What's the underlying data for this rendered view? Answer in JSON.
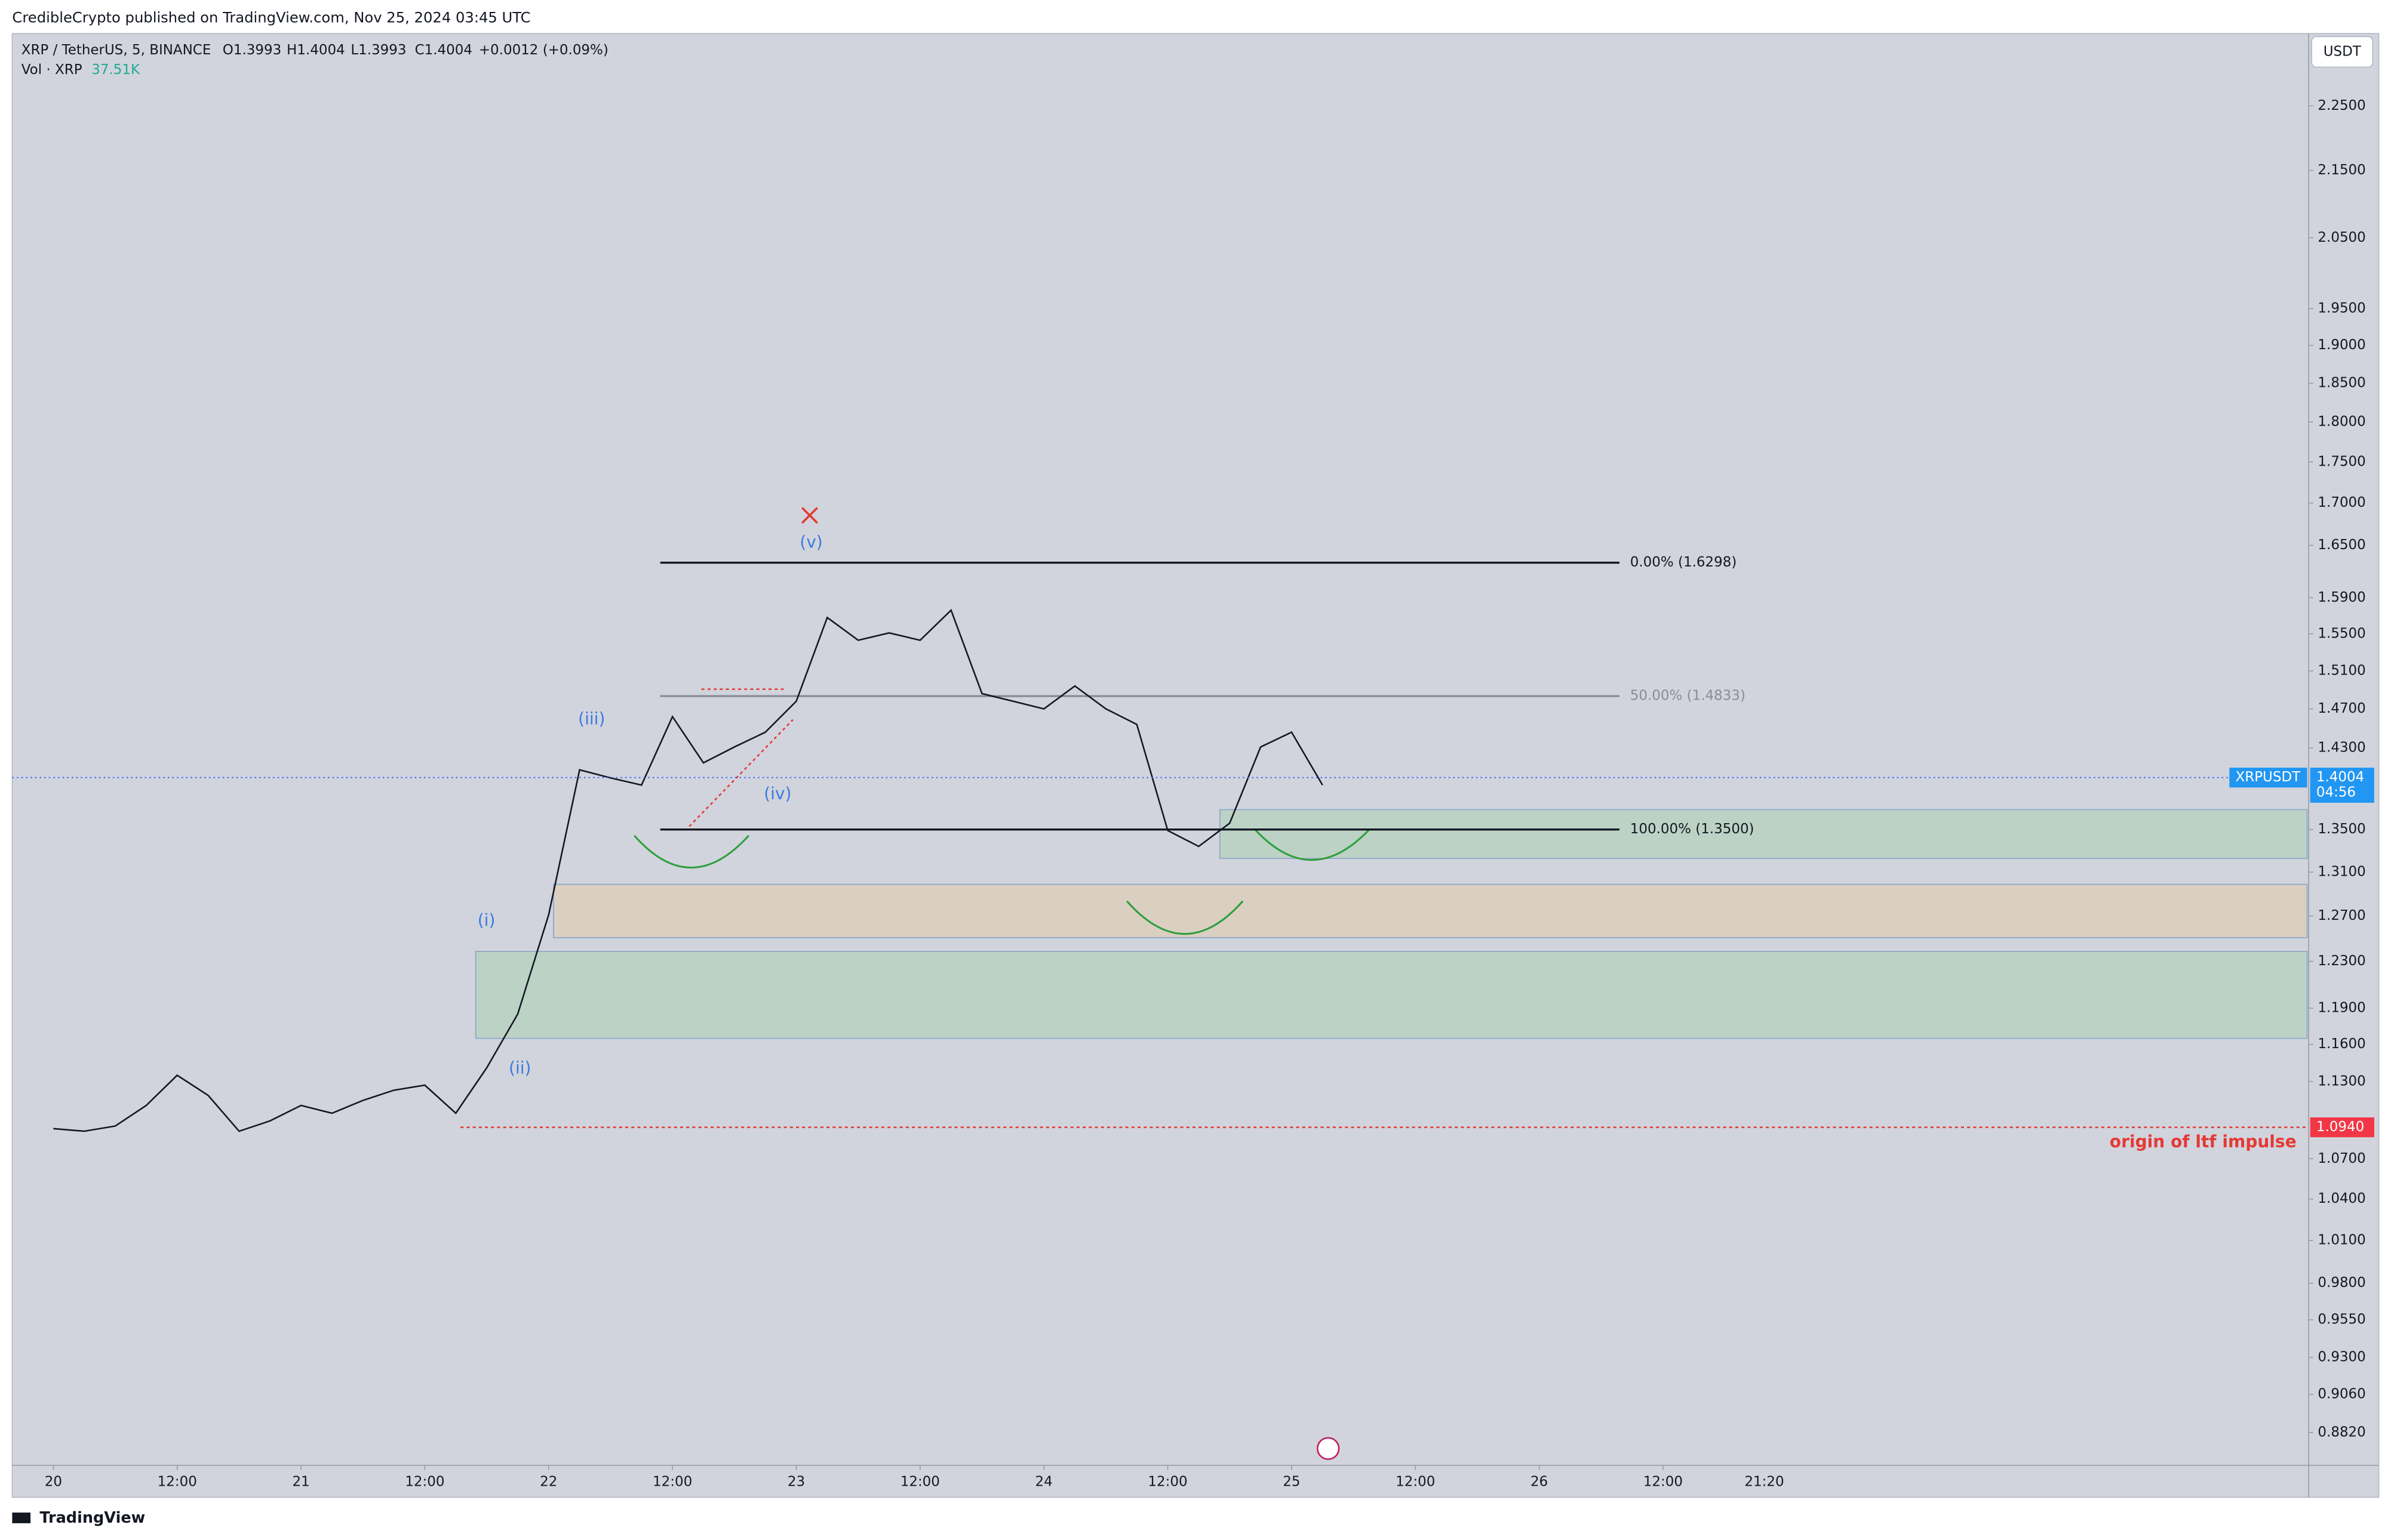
{
  "header": {
    "publisher": "CredibleCrypto published on TradingView.com, Nov 25, 2024 03:45 UTC"
  },
  "legend": {
    "symbol": "XRP / TetherUS, 5, BINANCE",
    "ohlc": [
      "O1.3993",
      "H1.4004",
      "L1.3993",
      "C1.4004"
    ],
    "change": "+0.0012 (+0.09%)",
    "volume_label": "Vol · XRP",
    "volume_value": "37.51K"
  },
  "currency_button": "USDT",
  "footer": "TradingView",
  "chart_data": {
    "type": "line",
    "log_scale": true,
    "categories": [
      "20",
      null,
      null,
      null,
      "12:00",
      null,
      null,
      null,
      "21",
      null,
      null,
      null,
      "12:00",
      null,
      null,
      null,
      "22",
      null,
      null,
      null,
      "12:00",
      null,
      null,
      null,
      "23",
      null,
      null,
      null,
      "12:00",
      null,
      null,
      null,
      "24",
      null,
      null,
      null,
      "12:00",
      null,
      null,
      null,
      "25",
      null,
      null,
      null,
      "12:00",
      null,
      null,
      null,
      "26",
      null,
      null,
      null,
      "12:00"
    ],
    "series": [
      {
        "color": "#131722",
        "values": [
          1.093,
          1.091,
          1.095,
          1.111,
          1.135,
          1.119,
          1.091,
          1.099,
          1.111,
          1.105,
          1.115,
          1.123,
          1.127,
          1.105,
          1.141,
          1.185,
          1.271,
          1.408,
          1.4,
          1.393,
          1.462,
          1.415,
          1.431,
          1.446,
          1.478,
          1.568,
          1.543,
          1.551,
          1.543,
          1.576,
          1.486,
          1.478,
          1.47,
          1.494,
          1.47,
          1.454,
          1.349,
          1.334,
          1.356,
          1.431,
          1.446,
          1.393,
          null,
          null,
          null,
          null,
          null,
          null,
          null,
          null,
          null,
          null,
          null
        ]
      }
    ],
    "ylim": [
      0.8627,
      2.368
    ],
    "yticks": [
      {
        "value": 2.25,
        "label": "2.2500"
      },
      {
        "value": 2.15,
        "label": "2.1500"
      },
      {
        "value": 2.05,
        "label": "2.0500"
      },
      {
        "value": 1.95,
        "label": "1.9500"
      },
      {
        "value": 1.9,
        "label": "1.9000"
      },
      {
        "value": 1.85,
        "label": "1.8500"
      },
      {
        "value": 1.8,
        "label": "1.8000"
      },
      {
        "value": 1.75,
        "label": "1.7500"
      },
      {
        "value": 1.7,
        "label": "1.7000"
      },
      {
        "value": 1.65,
        "label": "1.6500"
      },
      {
        "value": 1.59,
        "label": "1.5900"
      },
      {
        "value": 1.55,
        "label": "1.5500"
      },
      {
        "value": 1.51,
        "label": "1.5100"
      },
      {
        "value": 1.47,
        "label": "1.4700"
      },
      {
        "value": 1.43,
        "label": "1.4300"
      },
      {
        "value": 1.35,
        "label": "1.3500"
      },
      {
        "value": 1.31,
        "label": "1.3100"
      },
      {
        "value": 1.27,
        "label": "1.2700"
      },
      {
        "value": 1.23,
        "label": "1.2300"
      },
      {
        "value": 1.19,
        "label": "1.1900"
      },
      {
        "value": 1.16,
        "label": "1.1600"
      },
      {
        "value": 1.13,
        "label": "1.1300"
      },
      {
        "value": 1.07,
        "label": "1.0700"
      },
      {
        "value": 1.04,
        "label": "1.0400"
      },
      {
        "value": 1.01,
        "label": "1.0100"
      },
      {
        "value": 0.98,
        "label": "0.9800"
      },
      {
        "value": 0.955,
        "label": "0.9550"
      },
      {
        "value": 0.93,
        "label": "0.9300"
      },
      {
        "value": 0.906,
        "label": "0.9060"
      },
      {
        "value": 0.882,
        "label": "0.8820"
      }
    ],
    "current_price": {
      "ticker": "XRPUSDT",
      "value": 1.4004,
      "countdown": "04:56"
    },
    "origin_level": {
      "value": 1.094,
      "label": "1.0940",
      "annotation": "origin of ltf impulse"
    },
    "fib_levels": [
      {
        "value": 1.6298,
        "label": "0.00% (1.6298)",
        "color": "#131722"
      },
      {
        "value": 1.4833,
        "label": "50.00% (1.4833)",
        "color": "#8a8d96"
      },
      {
        "value": 1.35,
        "label": "100.00% (1.3500)",
        "color": "#131722"
      }
    ],
    "wave_labels": [
      "(i)",
      "(ii)",
      "(iii)",
      "(iv)",
      "(v)"
    ],
    "cursor_time": "21:20"
  }
}
